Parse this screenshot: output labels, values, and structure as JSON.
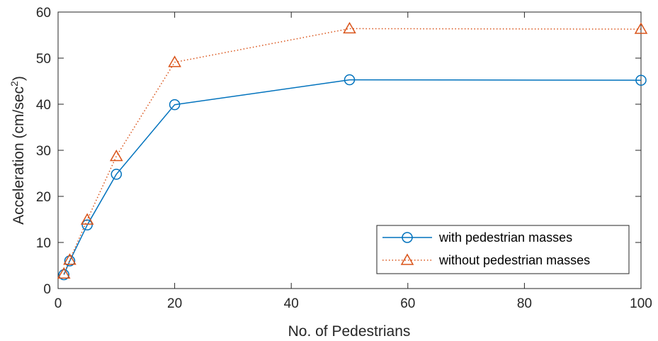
{
  "chart_data": {
    "type": "line",
    "title": "",
    "xlabel": "No. of Pedestrians",
    "ylabel_main": "Acceleration (cm/sec",
    "ylabel_sup": "2",
    "ylabel_close": ")",
    "xlim": [
      0,
      100
    ],
    "ylim": [
      0,
      60
    ],
    "xticks": [
      0,
      20,
      40,
      60,
      80,
      100
    ],
    "yticks": [
      0,
      10,
      20,
      30,
      40,
      50,
      60
    ],
    "grid": false,
    "legend_position": "bottom-right",
    "series": [
      {
        "name": "with pedestrian masses",
        "color": "#0072BD",
        "line_style": "solid",
        "marker": "circle",
        "x": [
          1,
          2,
          5,
          10,
          20,
          50,
          100
        ],
        "y": [
          3.0,
          6.0,
          13.8,
          24.8,
          39.9,
          45.3,
          45.2
        ]
      },
      {
        "name": "without pedestrian masses",
        "color": "#D95319",
        "line_style": "dotted",
        "marker": "triangle",
        "x": [
          1,
          2,
          5,
          10,
          20,
          50,
          100
        ],
        "y": [
          3.2,
          6.2,
          14.9,
          28.7,
          49.1,
          56.4,
          56.3
        ]
      }
    ]
  }
}
